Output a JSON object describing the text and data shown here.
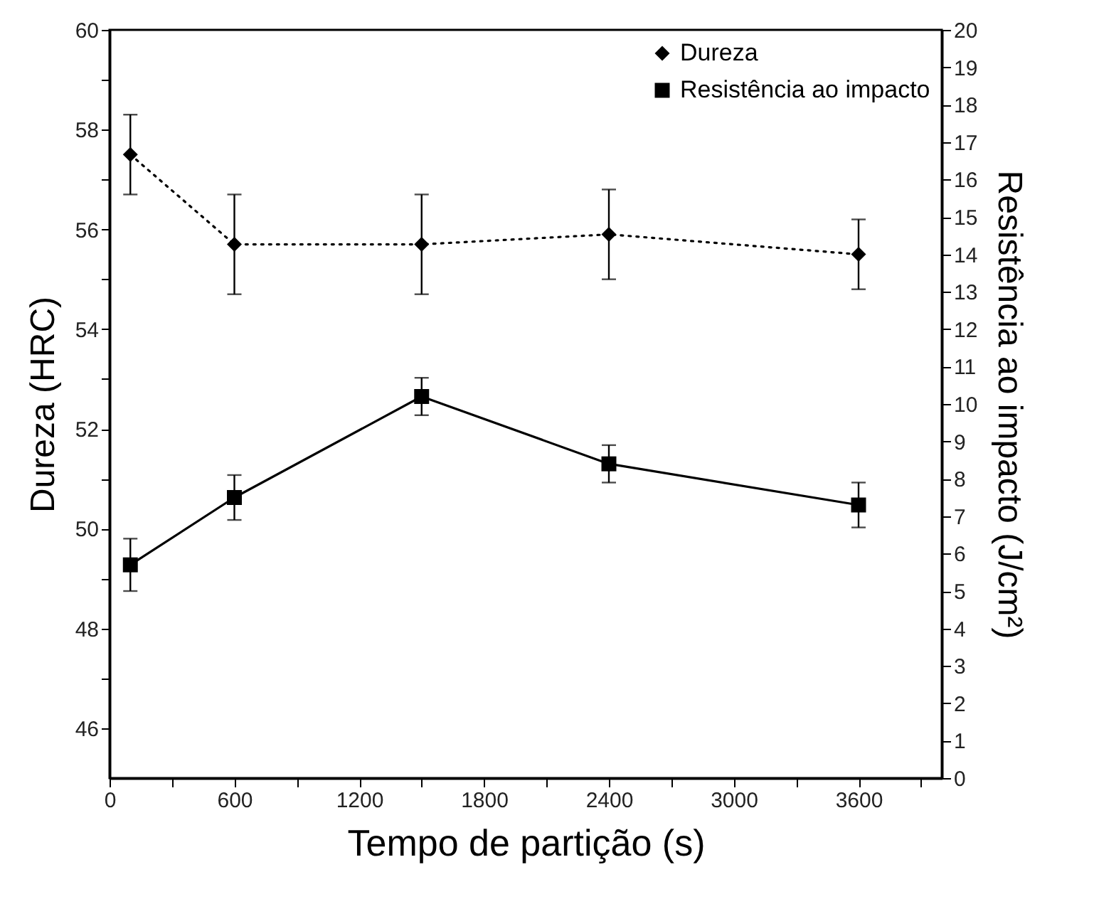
{
  "chart_data": {
    "type": "line",
    "xlabel": "Tempo de partição (s)",
    "ylabel": "Dureza (HRC)",
    "y2label": "Resistência ao impacto (J/cm²)",
    "x": [
      100,
      600,
      1500,
      2400,
      3600
    ],
    "series": [
      {
        "name": "Dureza",
        "color": "#000000",
        "marker": "diamond",
        "line_style": "dotted",
        "values": [
          57.5,
          55.7,
          55.7,
          55.9,
          55.5
        ],
        "errors": [
          [
            56.7,
            58.3
          ],
          [
            54.7,
            56.7
          ],
          [
            54.7,
            56.7
          ],
          [
            55.0,
            56.8
          ],
          [
            54.8,
            56.2
          ]
        ]
      },
      {
        "name": "Resistência ao impacto",
        "color": "#000000",
        "marker": "square",
        "line_style": "solid",
        "axis": "y2",
        "values": [
          5.7,
          7.5,
          10.2,
          8.4,
          7.3
        ],
        "errors": [
          [
            5.0,
            6.4
          ],
          [
            6.9,
            8.1
          ],
          [
            9.7,
            10.7
          ],
          [
            7.9,
            8.9
          ],
          [
            6.7,
            7.9
          ]
        ]
      }
    ],
    "xlim": [
      0,
      4000
    ],
    "xticks": [
      0,
      {
        "value": 300,
        "label": null
      },
      600,
      {
        "value": 900,
        "label": null
      },
      1200,
      {
        "value": 1500,
        "label": null
      },
      1800,
      {
        "value": 2100,
        "label": null
      },
      2400,
      {
        "value": 2700,
        "label": null
      },
      3000,
      {
        "value": 3300,
        "label": null
      },
      3600,
      {
        "value": 3900,
        "label": null
      }
    ],
    "ylim": [
      45,
      60
    ],
    "yticks": [
      46,
      {
        "value": 47,
        "label": null
      },
      48,
      {
        "value": 49,
        "label": null
      },
      50,
      {
        "value": 51,
        "label": null
      },
      52,
      {
        "value": 53,
        "label": null
      },
      54,
      {
        "value": 55,
        "label": null
      },
      56,
      {
        "value": 57,
        "label": null
      },
      58,
      {
        "value": 59,
        "label": null
      },
      60
    ],
    "y2lim": [
      0,
      20
    ],
    "y2ticks": [
      0,
      1,
      2,
      3,
      4,
      5,
      6,
      7,
      8,
      9,
      10,
      11,
      12,
      13,
      14,
      15,
      16,
      17,
      18,
      19,
      20
    ],
    "legend": "top right",
    "grid": false
  }
}
